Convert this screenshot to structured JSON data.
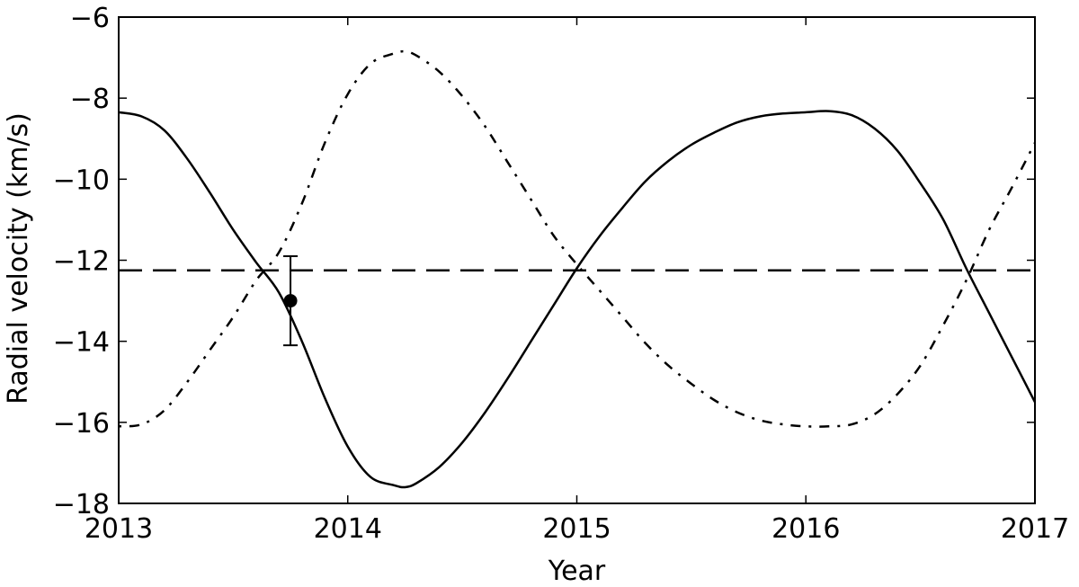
{
  "chart_data": {
    "type": "line",
    "xlabel": "Year",
    "ylabel": "Radial velocity (km/s)",
    "xlim": [
      2013,
      2017
    ],
    "ylim": [
      -18,
      -6
    ],
    "xticks": [
      2013,
      2014,
      2015,
      2016,
      2017
    ],
    "xtick_labels": [
      "2013",
      "2014",
      "2015",
      "2016",
      "2017"
    ],
    "yticks": [
      -18,
      -16,
      -14,
      -12,
      -10,
      -8,
      -6
    ],
    "ytick_labels": [
      "−18",
      "−16",
      "−14",
      "−12",
      "−10",
      "−8",
      "−6"
    ],
    "grid": false,
    "legend": "none",
    "series": [
      {
        "style": "solid",
        "color": "#000000",
        "x": [
          2013.0,
          2013.1,
          2013.2,
          2013.3,
          2013.4,
          2013.5,
          2013.6,
          2013.7,
          2013.8,
          2013.9,
          2014.0,
          2014.1,
          2014.2,
          2014.25,
          2014.3,
          2014.4,
          2014.5,
          2014.6,
          2014.7,
          2014.8,
          2014.9,
          2015.0,
          2015.1,
          2015.2,
          2015.3,
          2015.4,
          2015.5,
          2015.6,
          2015.7,
          2015.8,
          2015.9,
          2016.0,
          2016.1,
          2016.2,
          2016.3,
          2016.4,
          2016.5,
          2016.6,
          2016.7,
          2016.8,
          2016.9,
          2017.0
        ],
        "y": [
          -8.35,
          -8.45,
          -8.8,
          -9.5,
          -10.35,
          -11.25,
          -12.05,
          -12.8,
          -14.0,
          -15.4,
          -16.6,
          -17.35,
          -17.55,
          -17.6,
          -17.5,
          -17.1,
          -16.5,
          -15.75,
          -14.9,
          -14.0,
          -13.1,
          -12.2,
          -11.4,
          -10.7,
          -10.05,
          -9.55,
          -9.15,
          -8.85,
          -8.6,
          -8.45,
          -8.38,
          -8.35,
          -8.32,
          -8.42,
          -8.75,
          -9.3,
          -10.1,
          -11.0,
          -12.2,
          -13.3,
          -14.4,
          -15.5
        ]
      },
      {
        "style": "dash-dot",
        "color": "#000000",
        "x": [
          2013.0,
          2013.1,
          2013.2,
          2013.3,
          2013.4,
          2013.5,
          2013.6,
          2013.7,
          2013.8,
          2013.9,
          2014.0,
          2014.1,
          2014.2,
          2014.25,
          2014.3,
          2014.4,
          2014.5,
          2014.6,
          2014.7,
          2014.8,
          2014.9,
          2015.0,
          2015.1,
          2015.2,
          2015.3,
          2015.4,
          2015.5,
          2015.6,
          2015.7,
          2015.8,
          2015.9,
          2016.0,
          2016.1,
          2016.2,
          2016.3,
          2016.4,
          2016.5,
          2016.6,
          2016.7,
          2016.8,
          2016.9,
          2017.0
        ],
        "y": [
          -16.1,
          -16.05,
          -15.7,
          -15.0,
          -14.2,
          -13.4,
          -12.5,
          -11.8,
          -10.6,
          -9.1,
          -7.9,
          -7.15,
          -6.9,
          -6.85,
          -6.95,
          -7.35,
          -7.95,
          -8.7,
          -9.6,
          -10.5,
          -11.4,
          -12.1,
          -12.75,
          -13.4,
          -14.05,
          -14.6,
          -15.05,
          -15.45,
          -15.75,
          -15.95,
          -16.05,
          -16.1,
          -16.1,
          -16.05,
          -15.8,
          -15.3,
          -14.6,
          -13.6,
          -12.5,
          -11.25,
          -10.2,
          -9.1
        ]
      },
      {
        "style": "dashed",
        "color": "#000000",
        "x": [
          2013.0,
          2017.0
        ],
        "y": [
          -12.25,
          -12.25
        ]
      }
    ],
    "points": [
      {
        "x": 2013.75,
        "y": -13.0,
        "yerr": 1.1
      }
    ]
  }
}
